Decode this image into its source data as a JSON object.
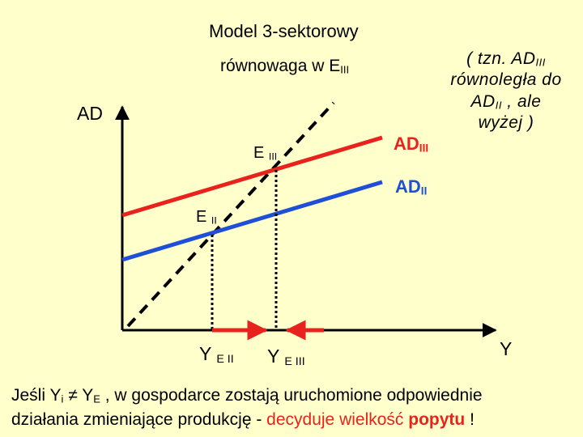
{
  "title": "Model 3-sektorowy",
  "subtitle": {
    "text": "równowaga w E",
    "sub": "III"
  },
  "axis_y": "AD",
  "axis_x": "Y",
  "curves": {
    "ad3": {
      "main": "AD",
      "sub": "III",
      "color": "#e8231d"
    },
    "ad2": {
      "main": "AD",
      "sub": "II",
      "color": "#1f4fd6"
    }
  },
  "points": {
    "e3": {
      "main": "E ",
      "sub": "III"
    },
    "e2": {
      "main": "E ",
      "sub": "II"
    }
  },
  "ticks": {
    "ye2": {
      "main": "Y ",
      "sub": "E II"
    },
    "ye3": {
      "main": "Y ",
      "sub": "E III"
    }
  },
  "note": {
    "p1": "( tzn. AD",
    "p1_sub": "III",
    "p2": " równoległa do AD",
    "p2_sub": "II",
    "p3": " , ale wyżej )"
  },
  "caption": {
    "a": "Jeśli  Y",
    "a_sub": "i",
    "neq": " ≠ ",
    "b": "Y",
    "b_sub": "E",
    "c": " , w gospodarce zostają uruchomione odpowiednie",
    "d": "działania zmieniające produkcję - ",
    "e": "decyduje wielkość ",
    "f": "popytu",
    "g": " !"
  },
  "colors": {
    "background": "#ffffcc",
    "accent": "#e8231d",
    "blue": "#1f4fd6"
  }
}
